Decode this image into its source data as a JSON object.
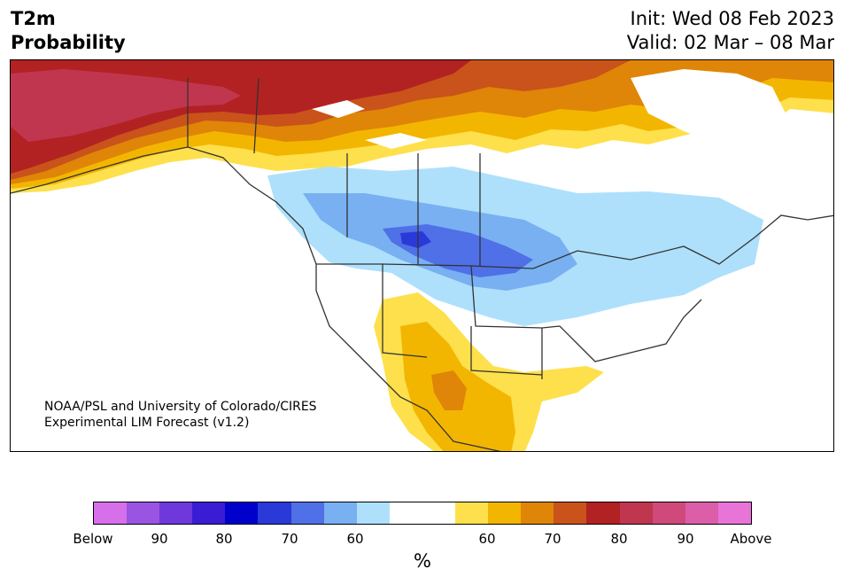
{
  "header": {
    "title": "T2m\nProbability",
    "init": "Init: Wed 08 Feb 2023",
    "valid": "Valid: 02 Mar – 08 Mar"
  },
  "map": {
    "credit_line1": "NOAA/PSL and University of Colorado/CIRES",
    "credit_line2": "Experimental LIM Forecast (v1.2)"
  },
  "colorbar": {
    "colors": [
      "#d670ea",
      "#9a54e2",
      "#6e38dc",
      "#3a1cd4",
      "#0000cc",
      "#2a3ad8",
      "#4f70e6",
      "#78b0f2",
      "#aee0fc",
      "#ffffff",
      "#ffffff",
      "#fde04c",
      "#f3b600",
      "#df8508",
      "#c9531a",
      "#b22222",
      "#c0364f",
      "#cf4a7a",
      "#dc5ea8",
      "#e874d8"
    ],
    "ticks": [
      {
        "label": "Below"
      },
      {
        "label": "90"
      },
      {
        "label": "80"
      },
      {
        "label": "70"
      },
      {
        "label": "60"
      },
      {
        "label": "60"
      },
      {
        "label": "70"
      },
      {
        "label": "80"
      },
      {
        "label": "90"
      },
      {
        "label": "Above"
      }
    ],
    "unit": "%"
  }
}
